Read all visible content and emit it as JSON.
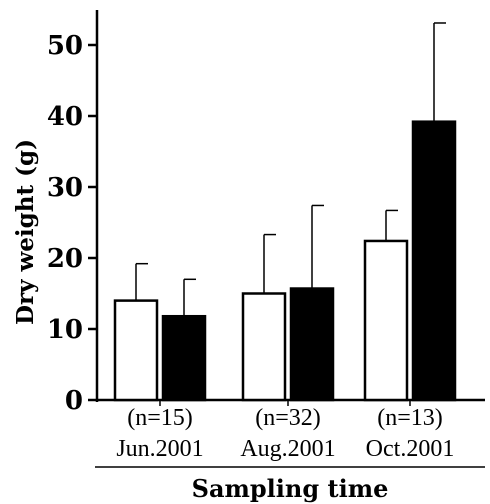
{
  "chart_data": {
    "type": "bar",
    "categories": [
      "Jun.2001",
      "Aug.2001",
      "Oct.2001"
    ],
    "sample_sizes": [
      "(n=15)",
      "(n=32)",
      "(n=13)"
    ],
    "series": [
      {
        "fill": "#ffffff",
        "values": [
          14,
          15,
          22.4
        ],
        "error": [
          5.2,
          8.3,
          4.3
        ]
      },
      {
        "fill": "#000000",
        "values": [
          11.8,
          15.7,
          39.2
        ],
        "error": [
          5.2,
          11.7,
          13.9
        ]
      }
    ],
    "ylabel": "Dry weight (g)",
    "xlabel": "Sampling time",
    "ylim": [
      0,
      55
    ],
    "yticks": [
      0,
      10,
      20,
      30,
      40,
      50
    ],
    "grid": false,
    "legend": "none"
  }
}
